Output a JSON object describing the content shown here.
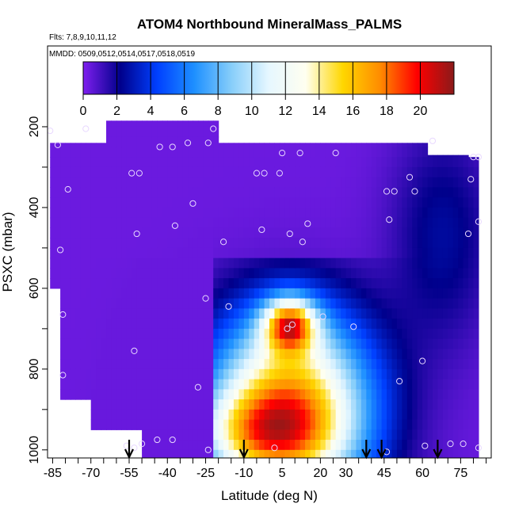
{
  "chart_data": {
    "type": "heatmap",
    "title": "ATOM4 Northbound MineralMass_PALMS",
    "subtitle_flights": "Flts: 7,8,9,10,11,12",
    "subtitle_dates": "MMDD: 0509,0512,0514,0517,0518,0519",
    "xlabel": "Latitude (deg N)",
    "ylabel": "PSXC (mbar)",
    "xlim": [
      -87,
      87
    ],
    "ylim": [
      1020,
      0
    ],
    "x_ticks": [
      -85,
      -70,
      -55,
      -40,
      -25,
      -10,
      5,
      20,
      30,
      45,
      60,
      75
    ],
    "y_ticks": [
      200,
      400,
      600,
      800,
      1000
    ],
    "colorbar": {
      "ticks": [
        0,
        2,
        4,
        6,
        8,
        10,
        12,
        14,
        16,
        18,
        20
      ],
      "range": [
        0,
        22
      ],
      "colors": [
        "#7f1fef",
        "#00008b",
        "#0040ff",
        "#1e90ff",
        "#87cefa",
        "#e6f7ff",
        "#fffff0",
        "#ffd700",
        "#ff8c00",
        "#ff0000",
        "#8b1a1a"
      ]
    },
    "lat_bins": [
      -85,
      -80,
      -75,
      -70,
      -65,
      -60,
      -55,
      -50,
      -45,
      -40,
      -35,
      -30,
      -25,
      -20,
      -15,
      -10,
      -5,
      0,
      5,
      10,
      15,
      20,
      25,
      30,
      35,
      40,
      45,
      50,
      55,
      60,
      65,
      70,
      75,
      80
    ],
    "p_bins": [
      175,
      225,
      275,
      325,
      375,
      425,
      475,
      525,
      575,
      625,
      675,
      725,
      775,
      825,
      875,
      925,
      975,
      1025
    ],
    "profile_markers_lat": [
      -55,
      -10,
      38,
      44,
      66
    ],
    "sample_points": [
      {
        "lat": -86,
        "p": 210
      },
      {
        "lat": -72,
        "p": 205
      },
      {
        "lat": -22,
        "p": 205
      },
      {
        "lat": -83,
        "p": 245
      },
      {
        "lat": -43,
        "p": 250
      },
      {
        "lat": -38,
        "p": 250
      },
      {
        "lat": -32,
        "p": 240
      },
      {
        "lat": -24,
        "p": 240
      },
      {
        "lat": 64,
        "p": 235
      },
      {
        "lat": 5,
        "p": 265
      },
      {
        "lat": 12,
        "p": 265
      },
      {
        "lat": 26,
        "p": 265
      },
      {
        "lat": 80,
        "p": 275
      },
      {
        "lat": 82,
        "p": 275
      },
      {
        "lat": -54,
        "p": 315
      },
      {
        "lat": -51,
        "p": 315
      },
      {
        "lat": -5,
        "p": 315
      },
      {
        "lat": -2,
        "p": 315
      },
      {
        "lat": 4,
        "p": 315
      },
      {
        "lat": 55,
        "p": 325
      },
      {
        "lat": 79,
        "p": 330
      },
      {
        "lat": -79,
        "p": 355
      },
      {
        "lat": 46,
        "p": 360
      },
      {
        "lat": 49,
        "p": 360
      },
      {
        "lat": 57,
        "p": 360
      },
      {
        "lat": -30,
        "p": 390
      },
      {
        "lat": 47,
        "p": 430
      },
      {
        "lat": 82,
        "p": 435
      },
      {
        "lat": 15,
        "p": 440
      },
      {
        "lat": -37,
        "p": 445
      },
      {
        "lat": -52,
        "p": 465
      },
      {
        "lat": -3,
        "p": 455
      },
      {
        "lat": 8,
        "p": 465
      },
      {
        "lat": 78,
        "p": 465
      },
      {
        "lat": 13,
        "p": 485
      },
      {
        "lat": -18,
        "p": 485
      },
      {
        "lat": -82,
        "p": 505
      },
      {
        "lat": -25,
        "p": 625
      },
      {
        "lat": -16,
        "p": 645
      },
      {
        "lat": -81,
        "p": 665
      },
      {
        "lat": 21,
        "p": 670
      },
      {
        "lat": 9,
        "p": 690
      },
      {
        "lat": 33,
        "p": 695
      },
      {
        "lat": 7,
        "p": 700
      },
      {
        "lat": -53,
        "p": 755
      },
      {
        "lat": 60,
        "p": 780
      },
      {
        "lat": -81,
        "p": 815
      },
      {
        "lat": 51,
        "p": 830
      },
      {
        "lat": -28,
        "p": 845
      },
      {
        "lat": -56,
        "p": 990
      },
      {
        "lat": -53,
        "p": 995
      },
      {
        "lat": -50,
        "p": 985
      },
      {
        "lat": -44,
        "p": 975
      },
      {
        "lat": -38,
        "p": 975
      },
      {
        "lat": -24,
        "p": 1000
      },
      {
        "lat": 2,
        "p": 995
      },
      {
        "lat": 46,
        "p": 1005
      },
      {
        "lat": 61,
        "p": 990
      },
      {
        "lat": 71,
        "p": 985
      },
      {
        "lat": 76,
        "p": 985
      },
      {
        "lat": 82,
        "p": 995
      }
    ]
  }
}
